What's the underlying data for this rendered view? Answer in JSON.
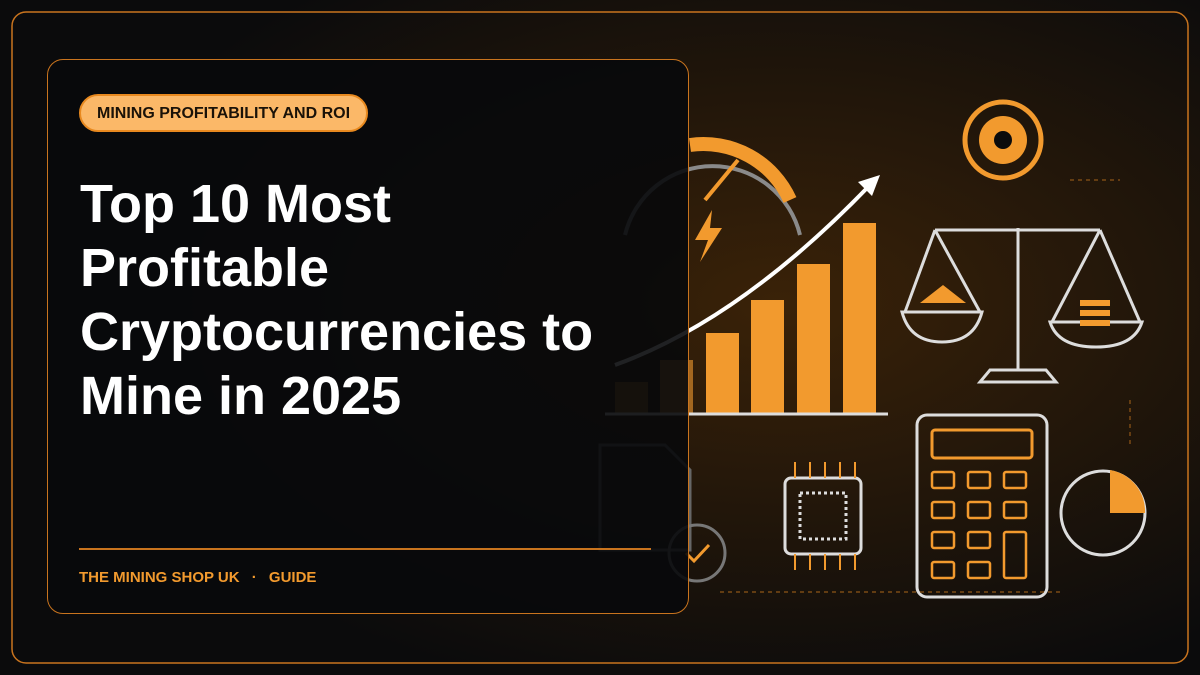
{
  "tag": "MINING PROFITABILITY AND ROI",
  "title": "Top 10 Most Profitable Cryptocurrencies to Mine in 2025",
  "footer": {
    "brand": "THE MINING SHOP UK",
    "separator": "·",
    "section": "GUIDE"
  }
}
